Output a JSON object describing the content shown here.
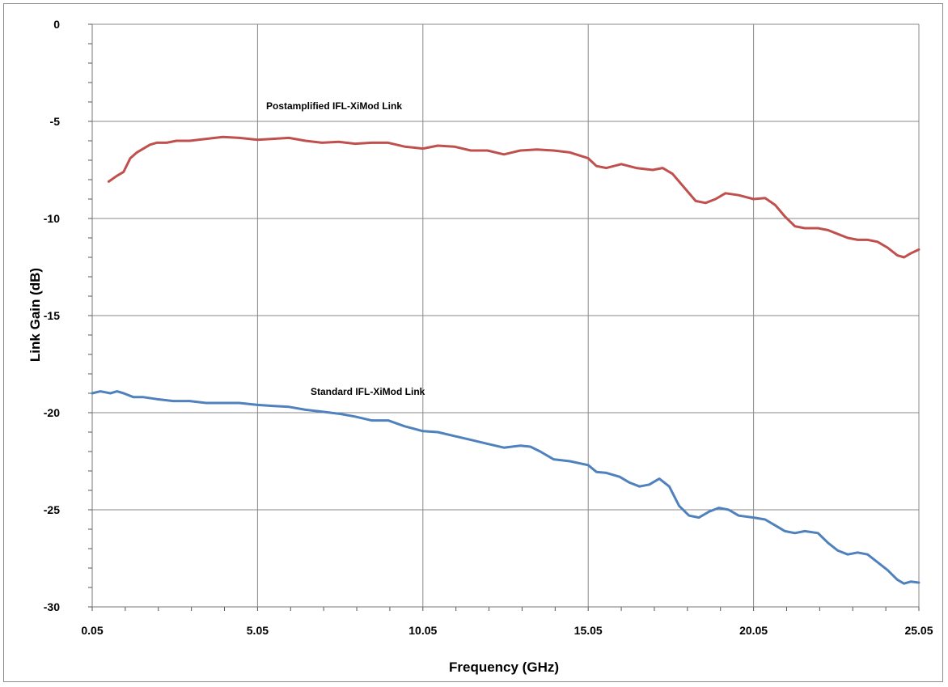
{
  "chart_data": {
    "type": "line",
    "title": "",
    "xlabel": "Frequency (GHz)",
    "ylabel": "Link Gain (dB)",
    "xlim": [
      0.05,
      25.05
    ],
    "ylim": [
      -30,
      0
    ],
    "xticks": [
      "0.05",
      "5.05",
      "10.05",
      "15.05",
      "20.05",
      "25.05"
    ],
    "yticks": [
      "0",
      "-5",
      "-10",
      "-15",
      "-20",
      "-25",
      "-30"
    ],
    "grid": true,
    "legend": "none",
    "colors": {
      "postamplified": "#c0504d",
      "standard": "#4f81bd",
      "grid": "#888888"
    },
    "annotations": [
      {
        "text": "Postamplified IFL-XiMod Link",
        "series": "postamplified"
      },
      {
        "text": "Standard IFL-XiMod Link",
        "series": "standard"
      }
    ],
    "series": [
      {
        "id": "postamplified",
        "x": [
          0.55,
          0.8,
          1.0,
          1.2,
          1.4,
          1.6,
          1.8,
          2.0,
          2.3,
          2.6,
          3.0,
          3.5,
          4.0,
          4.5,
          5.05,
          5.5,
          6.0,
          6.5,
          7.0,
          7.5,
          8.0,
          8.5,
          9.0,
          9.5,
          10.05,
          10.5,
          11.0,
          11.5,
          12.0,
          12.5,
          13.0,
          13.5,
          14.0,
          14.5,
          15.05,
          15.3,
          15.6,
          16.05,
          16.5,
          17.0,
          17.3,
          17.6,
          18.0,
          18.3,
          18.6,
          18.9,
          19.2,
          19.6,
          20.05,
          20.4,
          20.7,
          21.0,
          21.3,
          21.6,
          22.0,
          22.3,
          22.6,
          22.9,
          23.2,
          23.5,
          23.8,
          24.1,
          24.4,
          24.6,
          24.8,
          25.05
        ],
        "y": [
          -8.1,
          -7.8,
          -7.6,
          -6.9,
          -6.6,
          -6.4,
          -6.2,
          -6.1,
          -6.1,
          -6.0,
          -6.0,
          -5.9,
          -5.8,
          -5.85,
          -5.95,
          -5.9,
          -5.85,
          -6.0,
          -6.1,
          -6.05,
          -6.15,
          -6.1,
          -6.1,
          -6.3,
          -6.4,
          -6.25,
          -6.3,
          -6.5,
          -6.5,
          -6.7,
          -6.5,
          -6.45,
          -6.5,
          -6.6,
          -6.9,
          -7.3,
          -7.4,
          -7.2,
          -7.4,
          -7.5,
          -7.4,
          -7.7,
          -8.5,
          -9.1,
          -9.2,
          -9.0,
          -8.7,
          -8.8,
          -9.0,
          -8.95,
          -9.3,
          -9.9,
          -10.4,
          -10.5,
          -10.5,
          -10.6,
          -10.8,
          -11.0,
          -11.1,
          -11.1,
          -11.2,
          -11.5,
          -11.9,
          -12.0,
          -11.8,
          -11.6
        ]
      },
      {
        "id": "standard",
        "x": [
          0.05,
          0.3,
          0.6,
          0.8,
          1.0,
          1.3,
          1.6,
          2.0,
          2.5,
          3.0,
          3.5,
          4.0,
          4.5,
          5.05,
          5.5,
          6.0,
          6.5,
          7.0,
          7.5,
          8.0,
          8.5,
          9.0,
          9.5,
          10.05,
          10.5,
          11.0,
          11.5,
          12.0,
          12.5,
          13.0,
          13.3,
          13.6,
          14.0,
          14.5,
          15.05,
          15.3,
          15.6,
          16.0,
          16.3,
          16.6,
          16.9,
          17.2,
          17.5,
          17.8,
          18.1,
          18.4,
          18.7,
          19.0,
          19.3,
          19.6,
          20.05,
          20.4,
          20.7,
          21.0,
          21.3,
          21.6,
          22.0,
          22.3,
          22.6,
          22.9,
          23.2,
          23.5,
          23.8,
          24.1,
          24.4,
          24.6,
          24.8,
          25.05
        ],
        "y": [
          -19.0,
          -18.9,
          -19.0,
          -18.9,
          -19.0,
          -19.2,
          -19.2,
          -19.3,
          -19.4,
          -19.4,
          -19.5,
          -19.5,
          -19.5,
          -19.6,
          -19.65,
          -19.7,
          -19.85,
          -19.95,
          -20.05,
          -20.2,
          -20.4,
          -20.4,
          -20.7,
          -20.95,
          -21.0,
          -21.2,
          -21.4,
          -21.6,
          -21.8,
          -21.7,
          -21.75,
          -22.0,
          -22.4,
          -22.5,
          -22.7,
          -23.05,
          -23.1,
          -23.3,
          -23.6,
          -23.8,
          -23.7,
          -23.4,
          -23.8,
          -24.8,
          -25.3,
          -25.4,
          -25.1,
          -24.9,
          -25.0,
          -25.3,
          -25.4,
          -25.5,
          -25.8,
          -26.1,
          -26.2,
          -26.1,
          -26.2,
          -26.7,
          -27.1,
          -27.3,
          -27.2,
          -27.3,
          -27.7,
          -28.1,
          -28.6,
          -28.8,
          -28.7,
          -28.75
        ]
      }
    ]
  }
}
